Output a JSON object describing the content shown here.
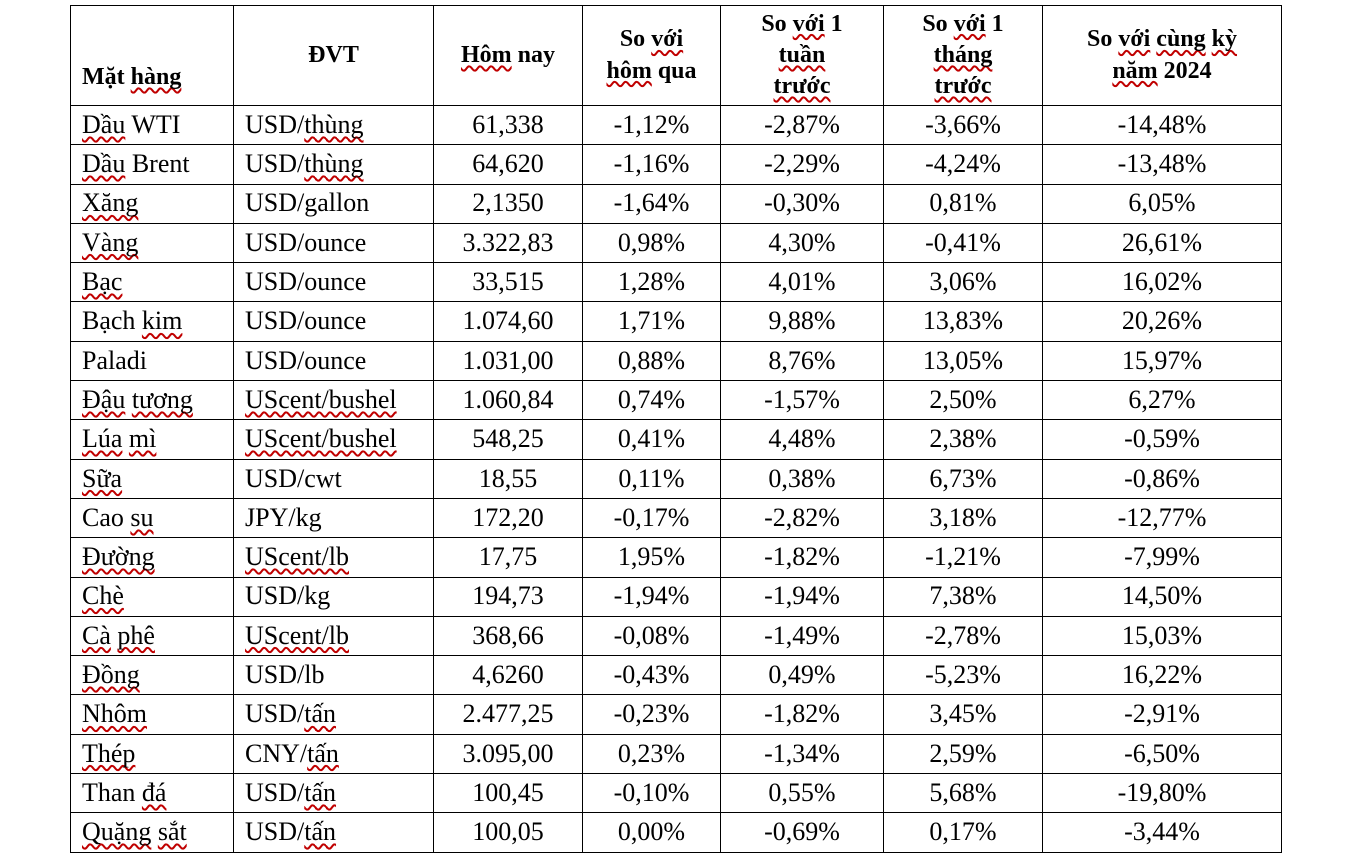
{
  "colors": {
    "background": "#ffffff",
    "border": "#000000",
    "text": "#000000",
    "spellcheck_squiggle": "#c00000"
  },
  "table": {
    "description": "commodity-price-table",
    "headers": [
      {
        "key": "mat-hang",
        "text": "Mặt hàng",
        "align": "left",
        "valign": "bottom",
        "lines": [
          [
            [
              "Mặt ",
              0
            ],
            [
              "hàng",
              1
            ]
          ]
        ]
      },
      {
        "key": "dvt",
        "text": "ĐVT",
        "lines": [
          [
            [
              "ĐVT",
              0
            ]
          ]
        ]
      },
      {
        "key": "hom-nay",
        "text": "Hôm nay",
        "lines": [
          [
            [
              "Hôm",
              1
            ],
            [
              " nay",
              0
            ]
          ]
        ]
      },
      {
        "key": "so-voi-hom-qua",
        "text": "So với hôm qua",
        "lines": [
          [
            [
              "So ",
              0
            ],
            [
              "với",
              1
            ]
          ],
          [
            [
              "hôm",
              1
            ],
            [
              " qua",
              0
            ]
          ]
        ]
      },
      {
        "key": "so-voi-1-tuan-truoc",
        "text": "So với 1 tuần trước",
        "lines": [
          [
            [
              "So ",
              0
            ],
            [
              "với",
              1
            ],
            [
              " 1",
              0
            ]
          ],
          [
            [
              "tuần",
              1
            ]
          ],
          [
            [
              "trước",
              1
            ]
          ]
        ]
      },
      {
        "key": "so-voi-1-thang-truoc",
        "text": "So với 1 tháng trước",
        "lines": [
          [
            [
              "So ",
              0
            ],
            [
              "với",
              1
            ],
            [
              " 1",
              0
            ]
          ],
          [
            [
              "tháng",
              1
            ]
          ],
          [
            [
              "trước",
              1
            ]
          ]
        ]
      },
      {
        "key": "so-voi-cung-ky-nam-2024",
        "text": "So với cùng kỳ năm 2024",
        "lines": [
          [
            [
              "So ",
              0
            ],
            [
              "với",
              1
            ],
            [
              " ",
              0
            ],
            [
              "cùng",
              1
            ],
            [
              " ",
              0
            ],
            [
              "kỳ",
              1
            ]
          ],
          [
            [
              "năm",
              1
            ],
            [
              " 2024",
              0
            ]
          ]
        ]
      }
    ],
    "value_column_keys": [
      "hom-nay",
      "so-voi-hom-qua",
      "so-voi-1-tuan-truoc",
      "so-voi-1-thang-truoc",
      "so-voi-cung-ky-nam-2024"
    ],
    "rows": [
      {
        "name_text": "Dầu WTI",
        "unit_text": "USD/thùng",
        "name": [
          [
            "Dầu",
            1
          ],
          [
            " WTI",
            0
          ]
        ],
        "unit": [
          [
            "USD/",
            0
          ],
          [
            "thùng",
            1
          ]
        ],
        "values": [
          "61,338",
          "-1,12%",
          "-2,87%",
          "-3,66%",
          "-14,48%"
        ]
      },
      {
        "name_text": "Dầu Brent",
        "unit_text": "USD/thùng",
        "name": [
          [
            "Dầu",
            1
          ],
          [
            " Brent",
            0
          ]
        ],
        "unit": [
          [
            "USD/",
            0
          ],
          [
            "thùng",
            1
          ]
        ],
        "values": [
          "64,620",
          "-1,16%",
          "-2,29%",
          "-4,24%",
          "-13,48%"
        ]
      },
      {
        "name_text": "Xăng",
        "unit_text": "USD/gallon",
        "name": [
          [
            "Xăng",
            1
          ]
        ],
        "unit": [
          [
            "USD/gallon",
            0
          ]
        ],
        "values": [
          "2,1350",
          "-1,64%",
          "-0,30%",
          "0,81%",
          "6,05%"
        ]
      },
      {
        "name_text": "Vàng",
        "unit_text": "USD/ounce",
        "name": [
          [
            "Vàng",
            1
          ]
        ],
        "unit": [
          [
            "USD/ounce",
            0
          ]
        ],
        "values": [
          "3.322,83",
          "0,98%",
          "4,30%",
          "-0,41%",
          "26,61%"
        ]
      },
      {
        "name_text": "Bạc",
        "unit_text": "USD/ounce",
        "name": [
          [
            "Bạc",
            1
          ]
        ],
        "unit": [
          [
            "USD/ounce",
            0
          ]
        ],
        "values": [
          "33,515",
          "1,28%",
          "4,01%",
          "3,06%",
          "16,02%"
        ]
      },
      {
        "name_text": "Bạch kim",
        "unit_text": "USD/ounce",
        "name": [
          [
            "Bạch ",
            0
          ],
          [
            "kim",
            1
          ]
        ],
        "unit": [
          [
            "USD/ounce",
            0
          ]
        ],
        "values": [
          "1.074,60",
          "1,71%",
          "9,88%",
          "13,83%",
          "20,26%"
        ]
      },
      {
        "name_text": "Paladi",
        "unit_text": "USD/ounce",
        "name": [
          [
            "Paladi",
            0
          ]
        ],
        "unit": [
          [
            "USD/ounce",
            0
          ]
        ],
        "values": [
          "1.031,00",
          "0,88%",
          "8,76%",
          "13,05%",
          "15,97%"
        ]
      },
      {
        "name_text": "Đậu tương",
        "unit_text": "UScent/bushel",
        "name": [
          [
            "Đậu",
            1
          ],
          [
            " ",
            0
          ],
          [
            "tương",
            1
          ]
        ],
        "unit": [
          [
            "UScent/bushel",
            1
          ]
        ],
        "values": [
          "1.060,84",
          "0,74%",
          "-1,57%",
          "2,50%",
          "6,27%"
        ]
      },
      {
        "name_text": "Lúa mì",
        "unit_text": "UScent/bushel",
        "name": [
          [
            "Lúa",
            1
          ],
          [
            " ",
            0
          ],
          [
            "mì",
            1
          ]
        ],
        "unit": [
          [
            "UScent/bushel",
            1
          ]
        ],
        "values": [
          "548,25",
          "0,41%",
          "4,48%",
          "2,38%",
          "-0,59%"
        ]
      },
      {
        "name_text": "Sữa",
        "unit_text": "USD/cwt",
        "name": [
          [
            "Sữa",
            1
          ]
        ],
        "unit": [
          [
            "USD/cwt",
            0
          ]
        ],
        "values": [
          "18,55",
          "0,11%",
          "0,38%",
          "6,73%",
          "-0,86%"
        ]
      },
      {
        "name_text": "Cao su",
        "unit_text": "JPY/kg",
        "name": [
          [
            "Cao ",
            0
          ],
          [
            "su",
            1
          ]
        ],
        "unit": [
          [
            "JPY/kg",
            0
          ]
        ],
        "values": [
          "172,20",
          "-0,17%",
          "-2,82%",
          "3,18%",
          "-12,77%"
        ]
      },
      {
        "name_text": "Đường",
        "unit_text": "UScent/lb",
        "name": [
          [
            "Đường",
            1
          ]
        ],
        "unit": [
          [
            "UScent/lb",
            1
          ]
        ],
        "values": [
          "17,75",
          "1,95%",
          "-1,82%",
          "-1,21%",
          "-7,99%"
        ]
      },
      {
        "name_text": "Chè",
        "unit_text": "USD/kg",
        "name": [
          [
            "Chè",
            1
          ]
        ],
        "unit": [
          [
            "USD/kg",
            0
          ]
        ],
        "values": [
          "194,73",
          "-1,94%",
          "-1,94%",
          "7,38%",
          "14,50%"
        ]
      },
      {
        "name_text": "Cà phê",
        "unit_text": "UScent/lb",
        "name": [
          [
            "Cà",
            1
          ],
          [
            " ",
            0
          ],
          [
            "phê",
            1
          ]
        ],
        "unit": [
          [
            "UScent/lb",
            1
          ]
        ],
        "values": [
          "368,66",
          "-0,08%",
          "-1,49%",
          "-2,78%",
          "15,03%"
        ]
      },
      {
        "name_text": "Đồng",
        "unit_text": "USD/lb",
        "name": [
          [
            "Đồng",
            1
          ]
        ],
        "unit": [
          [
            "USD/lb",
            0
          ]
        ],
        "values": [
          "4,6260",
          "-0,43%",
          "0,49%",
          "-5,23%",
          "16,22%"
        ]
      },
      {
        "name_text": "Nhôm",
        "unit_text": "USD/tấn",
        "name": [
          [
            "Nhôm",
            1
          ]
        ],
        "unit": [
          [
            "USD/",
            0
          ],
          [
            "tấn",
            1
          ]
        ],
        "values": [
          "2.477,25",
          "-0,23%",
          "-1,82%",
          "3,45%",
          "-2,91%"
        ]
      },
      {
        "name_text": "Thép",
        "unit_text": "CNY/tấn",
        "name": [
          [
            "Thép",
            1
          ]
        ],
        "unit": [
          [
            "CNY/",
            0
          ],
          [
            "tấn",
            1
          ]
        ],
        "values": [
          "3.095,00",
          "0,23%",
          "-1,34%",
          "2,59%",
          "-6,50%"
        ]
      },
      {
        "name_text": "Than đá",
        "unit_text": "USD/tấn",
        "name": [
          [
            "Than ",
            0
          ],
          [
            "đá",
            1
          ]
        ],
        "unit": [
          [
            "USD/",
            0
          ],
          [
            "tấn",
            1
          ]
        ],
        "values": [
          "100,45",
          "-0,10%",
          "0,55%",
          "5,68%",
          "-19,80%"
        ]
      },
      {
        "name_text": "Quặng sắt",
        "unit_text": "USD/tấn",
        "name": [
          [
            "Quặng",
            1
          ],
          [
            " ",
            0
          ],
          [
            "sắt",
            1
          ]
        ],
        "unit": [
          [
            "USD/",
            0
          ],
          [
            "tấn",
            1
          ]
        ],
        "values": [
          "100,05",
          "0,00%",
          "-0,69%",
          "0,17%",
          "-3,44%"
        ]
      }
    ]
  }
}
